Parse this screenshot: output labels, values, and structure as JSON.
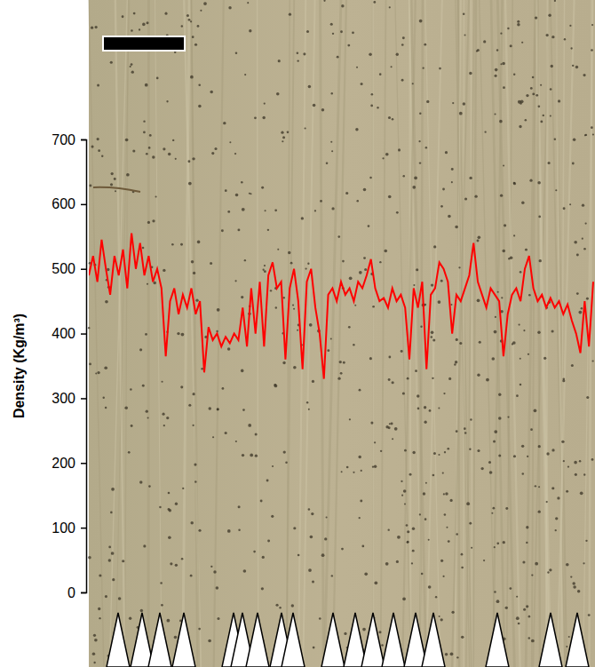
{
  "chart_data": {
    "type": "line",
    "y_label": "Density (Kg/m³)",
    "color": "#ff0000",
    "ylim": [
      0,
      700
    ],
    "yticks": [
      0,
      100,
      200,
      300,
      400,
      500,
      600,
      700
    ],
    "grid": false,
    "tick_labels": "y",
    "values": [
      490,
      520,
      480,
      545,
      500,
      460,
      520,
      490,
      530,
      470,
      555,
      500,
      540,
      490,
      520,
      480,
      500,
      470,
      365,
      450,
      470,
      430,
      460,
      440,
      470,
      430,
      450,
      340,
      410,
      390,
      400,
      380,
      395,
      385,
      400,
      390,
      440,
      380,
      470,
      400,
      480,
      380,
      490,
      510,
      470,
      480,
      360,
      470,
      500,
      450,
      345,
      480,
      500,
      440,
      400,
      330,
      460,
      470,
      450,
      480,
      460,
      470,
      450,
      480,
      470,
      490,
      515,
      470,
      450,
      455,
      440,
      470,
      450,
      460,
      440,
      360,
      470,
      440,
      480,
      345,
      460,
      470,
      510,
      500,
      480,
      400,
      460,
      450,
      470,
      490,
      540,
      480,
      460,
      440,
      470,
      460,
      450,
      365,
      430,
      460,
      470,
      450,
      500,
      520,
      470,
      450,
      460,
      440,
      455,
      440,
      450,
      430,
      445,
      420,
      400,
      370,
      450,
      380,
      480
    ]
  }
}
